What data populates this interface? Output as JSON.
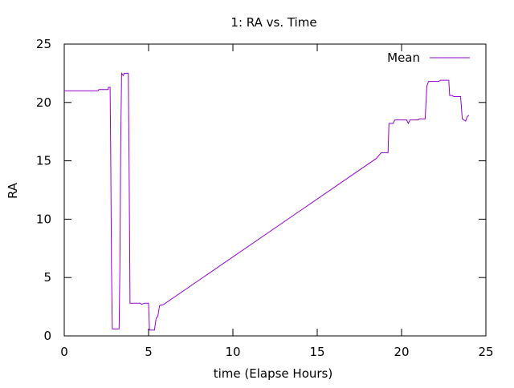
{
  "chart_data": {
    "type": "line",
    "title": "1: RA vs. Time",
    "xlabel": "time (Elapse Hours)",
    "ylabel": "RA",
    "xlim": [
      0,
      25
    ],
    "ylim": [
      0,
      25
    ],
    "x_ticks": [
      0,
      5,
      10,
      15,
      20,
      25
    ],
    "y_ticks": [
      0,
      5,
      10,
      15,
      20,
      25
    ],
    "grid": false,
    "legend_position": "top-right",
    "series": [
      {
        "name": "Mean",
        "color": "#9400d3",
        "points": [
          [
            0.0,
            21.0
          ],
          [
            2.0,
            21.0
          ],
          [
            2.05,
            21.1
          ],
          [
            2.6,
            21.1
          ],
          [
            2.62,
            21.3
          ],
          [
            2.72,
            21.3
          ],
          [
            2.75,
            16.0
          ],
          [
            2.8,
            6.0
          ],
          [
            2.85,
            0.6
          ],
          [
            3.25,
            0.6
          ],
          [
            3.3,
            6.0
          ],
          [
            3.35,
            17.0
          ],
          [
            3.4,
            22.5
          ],
          [
            3.5,
            22.3
          ],
          [
            3.55,
            22.5
          ],
          [
            3.8,
            22.5
          ],
          [
            3.85,
            14.0
          ],
          [
            3.9,
            2.8
          ],
          [
            4.5,
            2.8
          ],
          [
            4.6,
            2.7
          ],
          [
            4.75,
            2.8
          ],
          [
            5.0,
            2.8
          ],
          [
            5.05,
            0.5
          ],
          [
            5.35,
            0.5
          ],
          [
            5.45,
            1.5
          ],
          [
            5.55,
            1.7
          ],
          [
            5.65,
            2.6
          ],
          [
            5.9,
            2.7
          ],
          [
            18.5,
            15.2
          ],
          [
            18.8,
            15.7
          ],
          [
            19.2,
            15.7
          ],
          [
            19.25,
            18.2
          ],
          [
            19.5,
            18.2
          ],
          [
            19.6,
            18.5
          ],
          [
            20.3,
            18.5
          ],
          [
            20.4,
            18.2
          ],
          [
            20.5,
            18.5
          ],
          [
            21.0,
            18.5
          ],
          [
            21.05,
            18.6
          ],
          [
            21.4,
            18.6
          ],
          [
            21.5,
            21.4
          ],
          [
            21.6,
            21.8
          ],
          [
            22.2,
            21.8
          ],
          [
            22.3,
            21.9
          ],
          [
            22.8,
            21.9
          ],
          [
            22.85,
            20.6
          ],
          [
            23.0,
            20.6
          ],
          [
            23.1,
            20.5
          ],
          [
            23.5,
            20.5
          ],
          [
            23.6,
            18.6
          ],
          [
            23.8,
            18.4
          ],
          [
            23.9,
            18.8
          ],
          [
            24.0,
            18.9
          ]
        ]
      }
    ]
  }
}
